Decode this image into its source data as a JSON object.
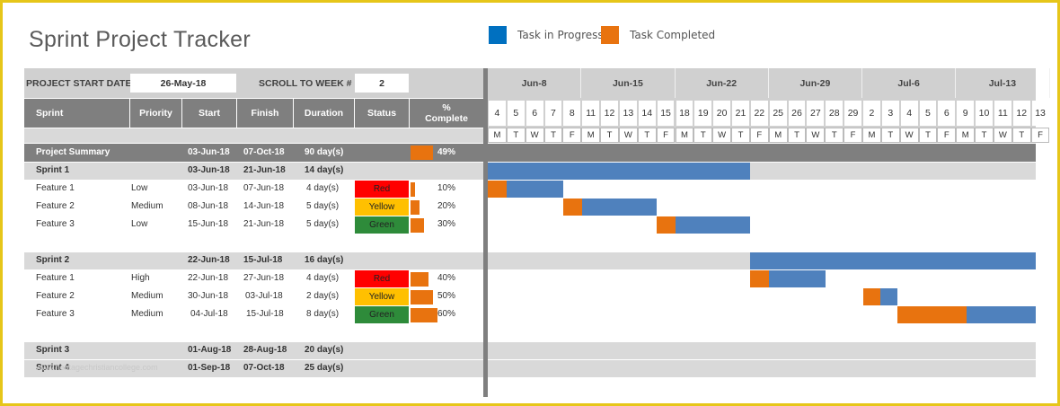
{
  "title": "Sprint Project Tracker",
  "legend": [
    {
      "label": "Task in Progress",
      "color": "#0070c0"
    },
    {
      "label": "Task Completed",
      "color": "#e8730f"
    }
  ],
  "colors": {
    "in_progress_bar": "#4f81bd",
    "completed_bar": "#e8730f",
    "header": "#7f7f7f",
    "red": "#ff0000",
    "yellow": "#ffc000",
    "green": "#2e8b3a"
  },
  "controls": {
    "start_date_label": "PROJECT START DATE",
    "start_date_value": "26-May-18",
    "scroll_label": "SCROLL TO WEEK #",
    "scroll_value": "2"
  },
  "columns": {
    "sprint": "Sprint",
    "priority": "Priority",
    "start": "Start",
    "finish": "Finish",
    "duration": "Duration",
    "status": "Status",
    "pct_line1": "%",
    "pct_line2": "Complete"
  },
  "summary": {
    "name": "Project Summary",
    "start": "03-Jun-18",
    "finish": "07-Oct-18",
    "duration": "90 day(s)",
    "pct": "49%",
    "pct_value": 0.49
  },
  "sprint1": {
    "name": "Sprint 1",
    "start": "03-Jun-18",
    "finish": "21-Jun-18",
    "duration": "14 day(s)",
    "features": [
      {
        "name": "Feature 1",
        "priority": "Low",
        "start": "03-Jun-18",
        "finish": "07-Jun-18",
        "duration": "4 day(s)",
        "status": "Red",
        "pct": "10%",
        "pct_value": 0.1
      },
      {
        "name": "Feature 2",
        "priority": "Medium",
        "start": "08-Jun-18",
        "finish": "14-Jun-18",
        "duration": "5 day(s)",
        "status": "Yellow",
        "pct": "20%",
        "pct_value": 0.2
      },
      {
        "name": "Feature 3",
        "priority": "Low",
        "start": "15-Jun-18",
        "finish": "21-Jun-18",
        "duration": "5 day(s)",
        "status": "Green",
        "pct": "30%",
        "pct_value": 0.3
      }
    ]
  },
  "sprint2": {
    "name": "Sprint 2",
    "start": "22-Jun-18",
    "finish": "15-Jul-18",
    "duration": "16 day(s)",
    "features": [
      {
        "name": "Feature 1",
        "priority": "High",
        "start": "22-Jun-18",
        "finish": "27-Jun-18",
        "duration": "4 day(s)",
        "status": "Red",
        "pct": "40%",
        "pct_value": 0.4
      },
      {
        "name": "Feature 2",
        "priority": "Medium",
        "start": "30-Jun-18",
        "finish": "03-Jul-18",
        "duration": "2 day(s)",
        "status": "Yellow",
        "pct": "50%",
        "pct_value": 0.5
      },
      {
        "name": "Feature 3",
        "priority": "Medium",
        "start": "04-Jul-18",
        "finish": "15-Jul-18",
        "duration": "8 day(s)",
        "status": "Green",
        "pct": "60%",
        "pct_value": 0.6
      }
    ]
  },
  "sprint3": {
    "name": "Sprint 3",
    "start": "01-Aug-18",
    "finish": "28-Aug-18",
    "duration": "20 day(s)"
  },
  "sprint4": {
    "name": "Sprint 4",
    "start": "01-Sep-18",
    "finish": "07-Oct-18",
    "duration": "25 day(s)"
  },
  "watermark": "www.heritagechristiancollege.com",
  "gantt": {
    "months": [
      "Jun-8",
      "Jun-15",
      "Jun-22",
      "Jun-29",
      "Jul-6",
      "Jul-13"
    ],
    "days": [
      "4",
      "5",
      "6",
      "7",
      "8",
      "11",
      "12",
      "13",
      "14",
      "15",
      "18",
      "19",
      "20",
      "21",
      "22",
      "25",
      "26",
      "27",
      "28",
      "29",
      "2",
      "3",
      "4",
      "5",
      "6",
      "9",
      "10",
      "11",
      "12",
      "13"
    ],
    "dows": [
      "M",
      "T",
      "W",
      "T",
      "F",
      "M",
      "T",
      "W",
      "T",
      "F",
      "M",
      "T",
      "W",
      "T",
      "F",
      "M",
      "T",
      "W",
      "T",
      "F",
      "M",
      "T",
      "W",
      "T",
      "F",
      "M",
      "T",
      "W",
      "T",
      "F"
    ]
  }
}
